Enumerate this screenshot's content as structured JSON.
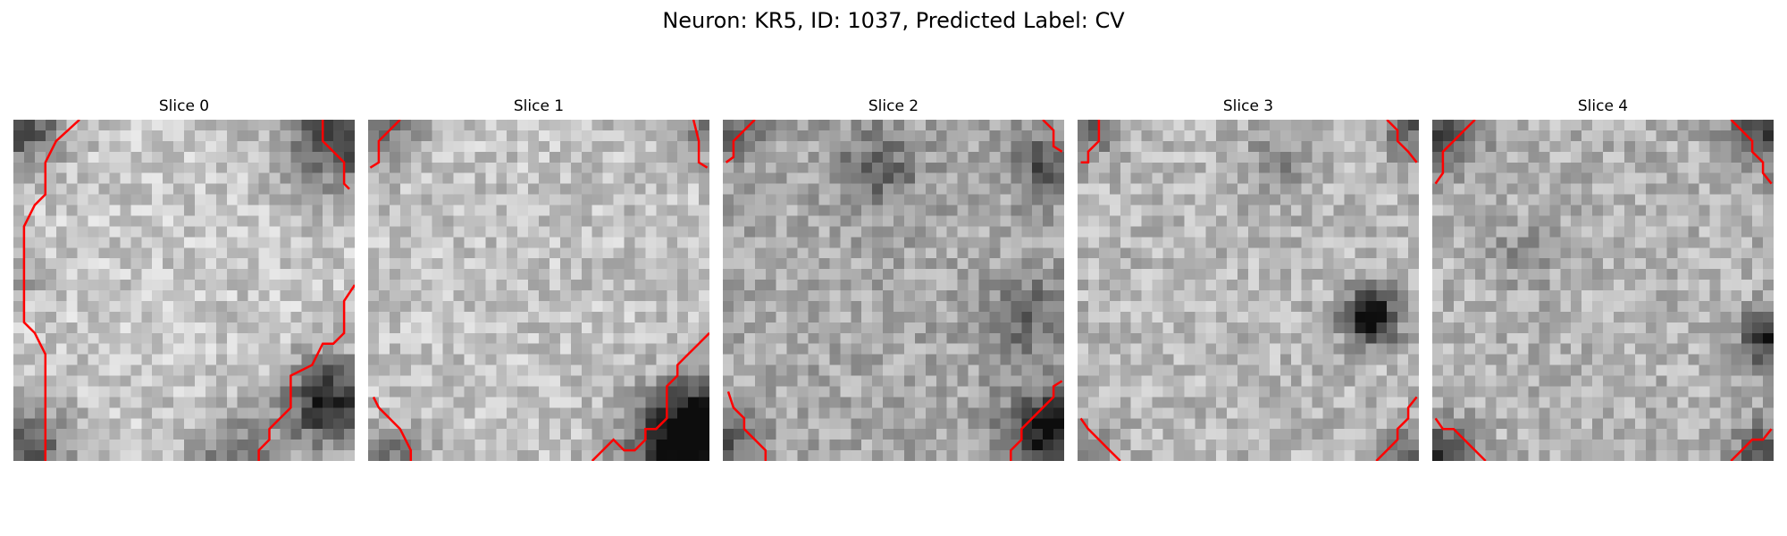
{
  "figure": {
    "title": "Neuron: KR5, ID: 1037, Predicted Label: CV"
  },
  "panels": [
    {
      "title": "Slice 0"
    },
    {
      "title": "Slice 1"
    },
    {
      "title": "Slice 2"
    },
    {
      "title": "Slice 3"
    },
    {
      "title": "Slice 4"
    }
  ],
  "colors": {
    "contour": "#ff0000",
    "background": "#ffffff"
  }
}
